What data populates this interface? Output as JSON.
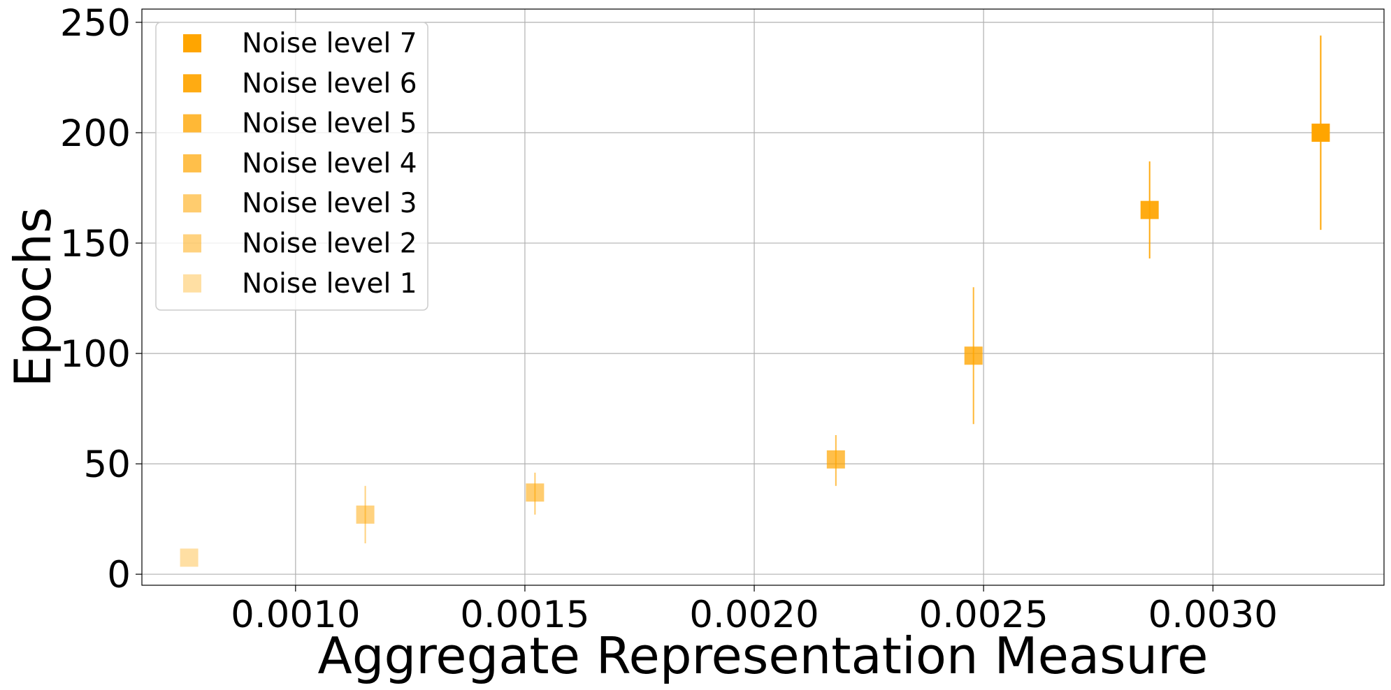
{
  "chart_data": {
    "type": "scatter",
    "title": "",
    "xlabel": "Aggregate Representation Measure",
    "ylabel": "Epochs",
    "xlim": [
      0.000665,
      0.003373
    ],
    "ylim": [
      -5,
      256
    ],
    "x_ticks": [
      0.001,
      0.0015,
      0.002,
      0.0025,
      0.003
    ],
    "x_tick_labels": [
      "0.0010",
      "0.0015",
      "0.0020",
      "0.0025",
      "0.0030"
    ],
    "y_ticks": [
      0,
      50,
      100,
      150,
      200,
      250
    ],
    "y_tick_labels": [
      "0",
      "50",
      "100",
      "150",
      "200",
      "250"
    ],
    "grid": true,
    "legend_position": "top-left",
    "marker": "square",
    "series": [
      {
        "name": "Noise level 7",
        "color": "#ffa500",
        "x": 0.003235,
        "y": 200,
        "y_err_low": 156,
        "y_err_high": 244
      },
      {
        "name": "Noise level 6",
        "color": "#ffa500",
        "x": 0.002862,
        "y": 165,
        "y_err_low": 143,
        "y_err_high": 187
      },
      {
        "name": "Noise level 5",
        "color": "#ffa500",
        "x": 0.002478,
        "y": 99,
        "y_err_low": 68,
        "y_err_high": 130
      },
      {
        "name": "Noise level 4",
        "color": "#ffa500",
        "x": 0.002178,
        "y": 52,
        "y_err_low": 40,
        "y_err_high": 63
      },
      {
        "name": "Noise level 3",
        "color": "#ffa500",
        "x": 0.001522,
        "y": 37,
        "y_err_low": 27,
        "y_err_high": 46
      },
      {
        "name": "Noise level 2",
        "color": "#ffa500",
        "x": 0.001152,
        "y": 27,
        "y_err_low": 14,
        "y_err_high": 40
      },
      {
        "name": "Noise level 1",
        "color": "#ffa500",
        "x": 0.000768,
        "y": 7.5,
        "y_err_low": 7.5,
        "y_err_high": 7.5
      }
    ],
    "series_opacity": [
      1.0,
      0.93,
      0.79,
      0.71,
      0.57,
      0.5,
      0.36
    ]
  }
}
